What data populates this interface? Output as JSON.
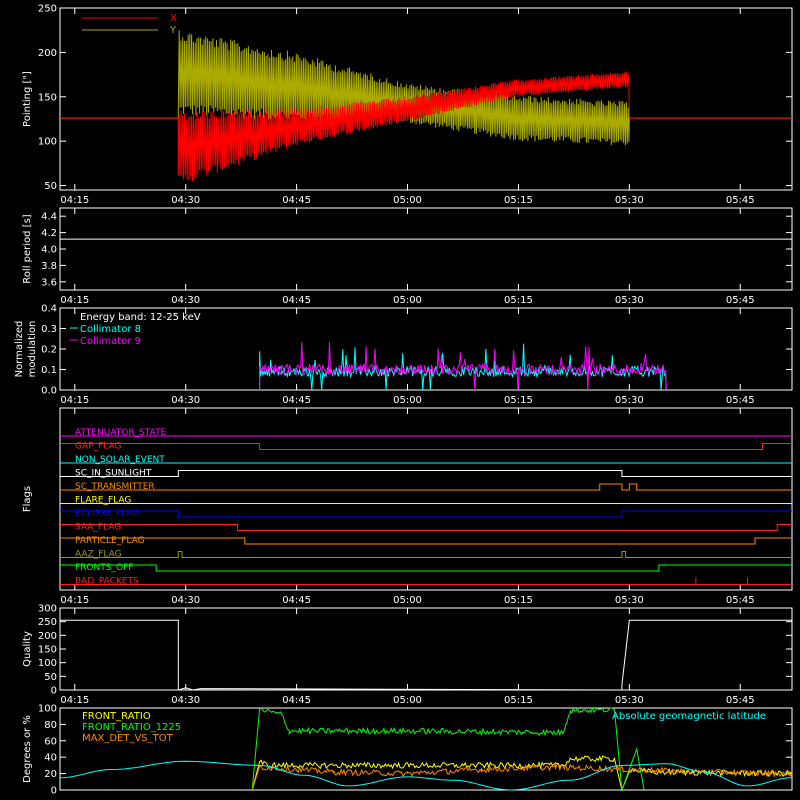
{
  "chart_data": [
    {
      "id": "pointing",
      "type": "line",
      "ylabel": "Pointing [\"]",
      "ylim": [
        45,
        250
      ],
      "yticks": [
        50,
        100,
        150,
        200,
        250
      ],
      "xticks": [
        "04:15",
        "04:30",
        "04:45",
        "05:00",
        "05:15",
        "05:30",
        "05:45"
      ],
      "series": [
        {
          "name": "X",
          "color": "#ff0000",
          "baseline": 126,
          "active_range": [
            "04:29",
            "05:30"
          ],
          "envelope_x": [
            "04:29",
            "04:30",
            "04:45",
            "05:00",
            "05:15",
            "05:29",
            "05:30"
          ],
          "envelope_low": [
            50,
            52,
            95,
            122,
            150,
            160,
            160
          ],
          "envelope_high": [
            135,
            135,
            138,
            150,
            170,
            178,
            178
          ]
        },
        {
          "name": "Y",
          "color": "#aaaa00",
          "baseline": 126,
          "active_range": [
            "04:29",
            "05:30"
          ],
          "envelope_x": [
            "04:29",
            "04:30",
            "04:45",
            "05:00",
            "05:15",
            "05:29",
            "05:30"
          ],
          "envelope_low": [
            128,
            128,
            122,
            120,
            100,
            95,
            95
          ],
          "envelope_high": [
            230,
            225,
            200,
            165,
            152,
            145,
            145
          ]
        }
      ]
    },
    {
      "id": "roll",
      "type": "line",
      "ylabel": "Roll period [s]",
      "ylim": [
        3.5,
        4.5
      ],
      "yticks": [
        3.6,
        3.8,
        4.0,
        4.2,
        4.4
      ],
      "xticks": [
        "04:15",
        "04:30",
        "04:45",
        "05:00",
        "05:15",
        "05:30",
        "05:45"
      ],
      "series": [
        {
          "color": "#ffffff",
          "x": [
            "04:15",
            "04:30",
            "04:45",
            "05:00",
            "05:15",
            "05:30",
            "05:45"
          ],
          "values": [
            4.12,
            4.12,
            4.12,
            4.12,
            4.12,
            4.12,
            4.12
          ]
        }
      ]
    },
    {
      "id": "modulation",
      "type": "line",
      "ylabel": "Normalized modulation",
      "ylim": [
        0,
        0.4
      ],
      "yticks": [
        0.0,
        0.1,
        0.2,
        0.3,
        0.4
      ],
      "xticks": [
        "04:15",
        "04:30",
        "04:45",
        "05:00",
        "05:15",
        "05:30",
        "05:45"
      ],
      "annotation": "Energy band: 12-25 keV",
      "active_range": [
        "04:40",
        "05:35"
      ],
      "series": [
        {
          "name": "Collimator 8",
          "color": "#00ffff",
          "level": 0.09
        },
        {
          "name": "Collimator 9",
          "color": "#ff00ff",
          "level": 0.1
        }
      ]
    },
    {
      "id": "flags",
      "type": "line",
      "ylabel": "Flags",
      "xticks": [
        "04:15",
        "04:30",
        "04:45",
        "05:00",
        "05:15",
        "05:30",
        "05:45"
      ],
      "flags": [
        {
          "name": "ATTENUATOR_STATE",
          "color": "#ff00ff",
          "steps": [
            [
              "04:13",
              0
            ]
          ]
        },
        {
          "name": "GAP_FLAG",
          "color": "#ff2020",
          "steps": [
            [
              "04:13",
              1
            ],
            [
              "04:40",
              0
            ],
            [
              "05:48",
              1
            ]
          ]
        },
        {
          "name": "NON_SOLAR_EVENT",
          "color": "#00ffff",
          "steps": [
            [
              "04:13",
              0
            ]
          ]
        },
        {
          "name": "SC_IN_SUNLIGHT",
          "color": "#ffffff",
          "steps": [
            [
              "04:13",
              0
            ],
            [
              "04:29",
              1
            ],
            [
              "05:29",
              0
            ]
          ]
        },
        {
          "name": "SC_TRANSMITTER",
          "color": "#ff8800",
          "steps": [
            [
              "04:13",
              0
            ],
            [
              "05:26",
              1
            ],
            [
              "05:29",
              0
            ],
            [
              "05:30",
              1
            ],
            [
              "05:31",
              0
            ]
          ]
        },
        {
          "name": "FLARE_FLAG",
          "color": "#ffff00",
          "steps": [
            [
              "04:13",
              0
            ]
          ]
        },
        {
          "name": "ECLIPSE_FLAG",
          "color": "#0000ff",
          "steps": [
            [
              "04:13",
              1
            ],
            [
              "04:29",
              0
            ],
            [
              "05:29",
              1
            ]
          ]
        },
        {
          "name": "SAA_FLAG",
          "color": "#ff2020",
          "steps": [
            [
              "04:13",
              1
            ],
            [
              "04:37",
              0
            ],
            [
              "05:50",
              1
            ]
          ]
        },
        {
          "name": "PARTICLE_FLAG",
          "color": "#ff8800",
          "steps": [
            [
              "04:13",
              1
            ],
            [
              "04:38",
              0
            ],
            [
              "05:47",
              1
            ]
          ]
        },
        {
          "name": "AAZ_FLAG",
          "color": "#999900",
          "steps": [
            [
              "04:13",
              0
            ],
            [
              "04:29",
              1
            ],
            [
              "04:29.5",
              0
            ],
            [
              "05:29",
              1
            ],
            [
              "05:29.5",
              0
            ]
          ]
        },
        {
          "name": "FRONTS_OFF",
          "color": "#00ff00",
          "steps": [
            [
              "04:13",
              1
            ],
            [
              "04:26",
              0
            ],
            [
              "05:34",
              1
            ]
          ]
        },
        {
          "name": "BAD_PACKETS",
          "color": "#ff2020",
          "steps": [
            [
              "04:13",
              0
            ]
          ],
          "spikes": [
            "05:39",
            "05:46"
          ]
        }
      ]
    },
    {
      "id": "quality",
      "type": "line",
      "ylabel": "Quality",
      "ylim": [
        0,
        300
      ],
      "yticks": [
        0,
        50,
        100,
        150,
        200,
        250,
        300
      ],
      "xticks": [
        "04:15",
        "04:30",
        "04:45",
        "05:00",
        "05:15",
        "05:30",
        "05:45"
      ],
      "series": [
        {
          "color": "#ffffff",
          "x": [
            "04:13",
            "04:29",
            "04:29",
            "04:30",
            "04:31",
            "04:32",
            "05:29",
            "05:29",
            "05:30",
            "05:52"
          ],
          "values": [
            255,
            255,
            0,
            8,
            0,
            5,
            0,
            20,
            255,
            255
          ]
        }
      ]
    },
    {
      "id": "front_ratio",
      "type": "line",
      "ylabel": "Degrees or %",
      "ylim": [
        0,
        100
      ],
      "yticks": [
        0,
        20,
        40,
        60,
        80,
        100
      ],
      "series": [
        {
          "name": "FRONT_RATIO",
          "color": "#ffff00",
          "x": [
            "04:39",
            "04:40",
            "04:41",
            "05:21",
            "05:22",
            "05:28",
            "05:29",
            "05:30",
            "05:33",
            "05:52"
          ],
          "values": [
            0,
            35,
            30,
            30,
            38,
            38,
            0,
            25,
            22,
            20
          ]
        },
        {
          "name": "FRONT_RATIO_1225",
          "color": "#00ff00",
          "x": [
            "04:39",
            "04:40",
            "04:43",
            "04:44",
            "05:00",
            "05:21",
            "05:22",
            "05:28",
            "05:29",
            "05:31",
            "05:32"
          ],
          "values": [
            0,
            98,
            92,
            72,
            72,
            70,
            97,
            98,
            0,
            50,
            0
          ]
        },
        {
          "name": "MAX_DET_VS_TOT",
          "color": "#ff8800",
          "x": [
            "04:39",
            "04:40",
            "04:50",
            "05:00",
            "05:10",
            "05:20",
            "05:30",
            "05:40",
            "05:52"
          ],
          "values": [
            0,
            28,
            22,
            20,
            25,
            28,
            25,
            22,
            20
          ]
        },
        {
          "name": "Absolute geomagnetic latitude",
          "color": "#00ffff",
          "x": [
            "04:13",
            "04:20",
            "04:30",
            "04:40",
            "04:46",
            "04:52",
            "05:00",
            "05:06",
            "05:14",
            "05:22",
            "05:29",
            "05:35",
            "05:40",
            "05:46",
            "05:52"
          ],
          "values": [
            15,
            25,
            35,
            30,
            18,
            5,
            16,
            12,
            0,
            12,
            30,
            32,
            22,
            5,
            15
          ]
        }
      ]
    }
  ]
}
